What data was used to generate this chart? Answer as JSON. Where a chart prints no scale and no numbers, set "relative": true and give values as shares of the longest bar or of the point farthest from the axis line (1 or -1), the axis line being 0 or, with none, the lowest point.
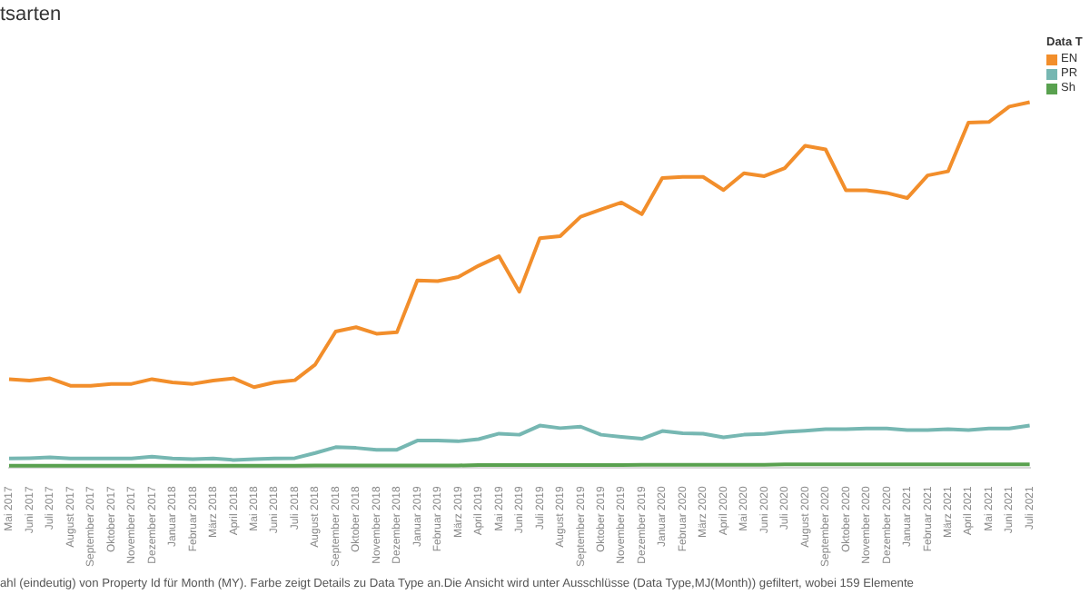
{
  "chart_data": {
    "type": "line",
    "title": "tsarten",
    "legend_title": "Data T",
    "legend": "right",
    "relative": true,
    "marker": "none",
    "line_style": "solid",
    "categories": [
      "Mai 2017",
      "Juni 2017",
      "Juli 2017",
      "August 2017",
      "September 2017",
      "Oktober 2017",
      "November 2017",
      "Dezember 2017",
      "Januar 2018",
      "Februar 2018",
      "März 2018",
      "April 2018",
      "Mai 2018",
      "Juni 2018",
      "Juli 2018",
      "August 2018",
      "September 2018",
      "Oktober 2018",
      "November 2018",
      "Dezember 2018",
      "Januar 2019",
      "Februar 2019",
      "März 2019",
      "April 2019",
      "Mai 2019",
      "Juni 2019",
      "Juli 2019",
      "August 2019",
      "September 2019",
      "Oktober 2019",
      "November 2019",
      "Dezember 2019",
      "Januar 2020",
      "Februar 2020",
      "März 2020",
      "April 2020",
      "Mai 2020",
      "Juni 2020",
      "Juli 2020",
      "August 2020",
      "September 2020",
      "Oktober 2020",
      "November 2020",
      "Dezember 2020",
      "Januar 2021",
      "Februar 2021",
      "März 2021",
      "April 2021",
      "Mai 2021",
      "Juni 2021",
      "Juli 2021"
    ],
    "series": [
      {
        "name": "EN",
        "color": "#f28e2b",
        "values": [
          0.243,
          0.239,
          0.245,
          0.225,
          0.225,
          0.23,
          0.23,
          0.243,
          0.234,
          0.23,
          0.239,
          0.245,
          0.221,
          0.234,
          0.24,
          0.283,
          0.373,
          0.385,
          0.367,
          0.371,
          0.513,
          0.511,
          0.522,
          0.553,
          0.579,
          0.482,
          0.628,
          0.634,
          0.687,
          0.707,
          0.726,
          0.694,
          0.793,
          0.796,
          0.796,
          0.76,
          0.806,
          0.798,
          0.82,
          0.881,
          0.871,
          0.759,
          0.759,
          0.752,
          0.738,
          0.8,
          0.811,
          0.944,
          0.946,
          0.988,
          1
        ]
      },
      {
        "name": "PR",
        "color": "#76b7b2",
        "values": [
          0.026,
          0.027,
          0.029,
          0.026,
          0.026,
          0.026,
          0.026,
          0.031,
          0.026,
          0.024,
          0.026,
          0.022,
          0.024,
          0.026,
          0.027,
          0.041,
          0.057,
          0.055,
          0.05,
          0.05,
          0.075,
          0.075,
          0.073,
          0.079,
          0.094,
          0.091,
          0.116,
          0.109,
          0.113,
          0.091,
          0.085,
          0.08,
          0.101,
          0.095,
          0.094,
          0.084,
          0.091,
          0.093,
          0.099,
          0.102,
          0.106,
          0.106,
          0.108,
          0.108,
          0.104,
          0.104,
          0.106,
          0.104,
          0.108,
          0.108,
          0.116
        ]
      },
      {
        "name": "Sh",
        "color": "#59a14f",
        "values": [
          0.006,
          0.006,
          0.006,
          0.006,
          0.006,
          0.006,
          0.006,
          0.006,
          0.006,
          0.006,
          0.006,
          0.006,
          0.006,
          0.006,
          0.006,
          0.007,
          0.007,
          0.007,
          0.007,
          0.007,
          0.007,
          0.007,
          0.007,
          0.008,
          0.008,
          0.008,
          0.008,
          0.008,
          0.008,
          0.008,
          0.008,
          0.009,
          0.009,
          0.009,
          0.009,
          0.009,
          0.009,
          0.009,
          0.01,
          0.01,
          0.01,
          0.01,
          0.01,
          0.01,
          0.01,
          0.01,
          0.01,
          0.01,
          0.01,
          0.01,
          0.01
        ]
      }
    ],
    "annotations": [
      "ahl (eindeutig) von Property Id für Month (MY). Farbe zeigt Details zu Data Type an.Die Ansicht wird unter Ausschlüsse (Data Type,MJ(Month)) gefiltert, wobei 159 Elemente"
    ]
  }
}
